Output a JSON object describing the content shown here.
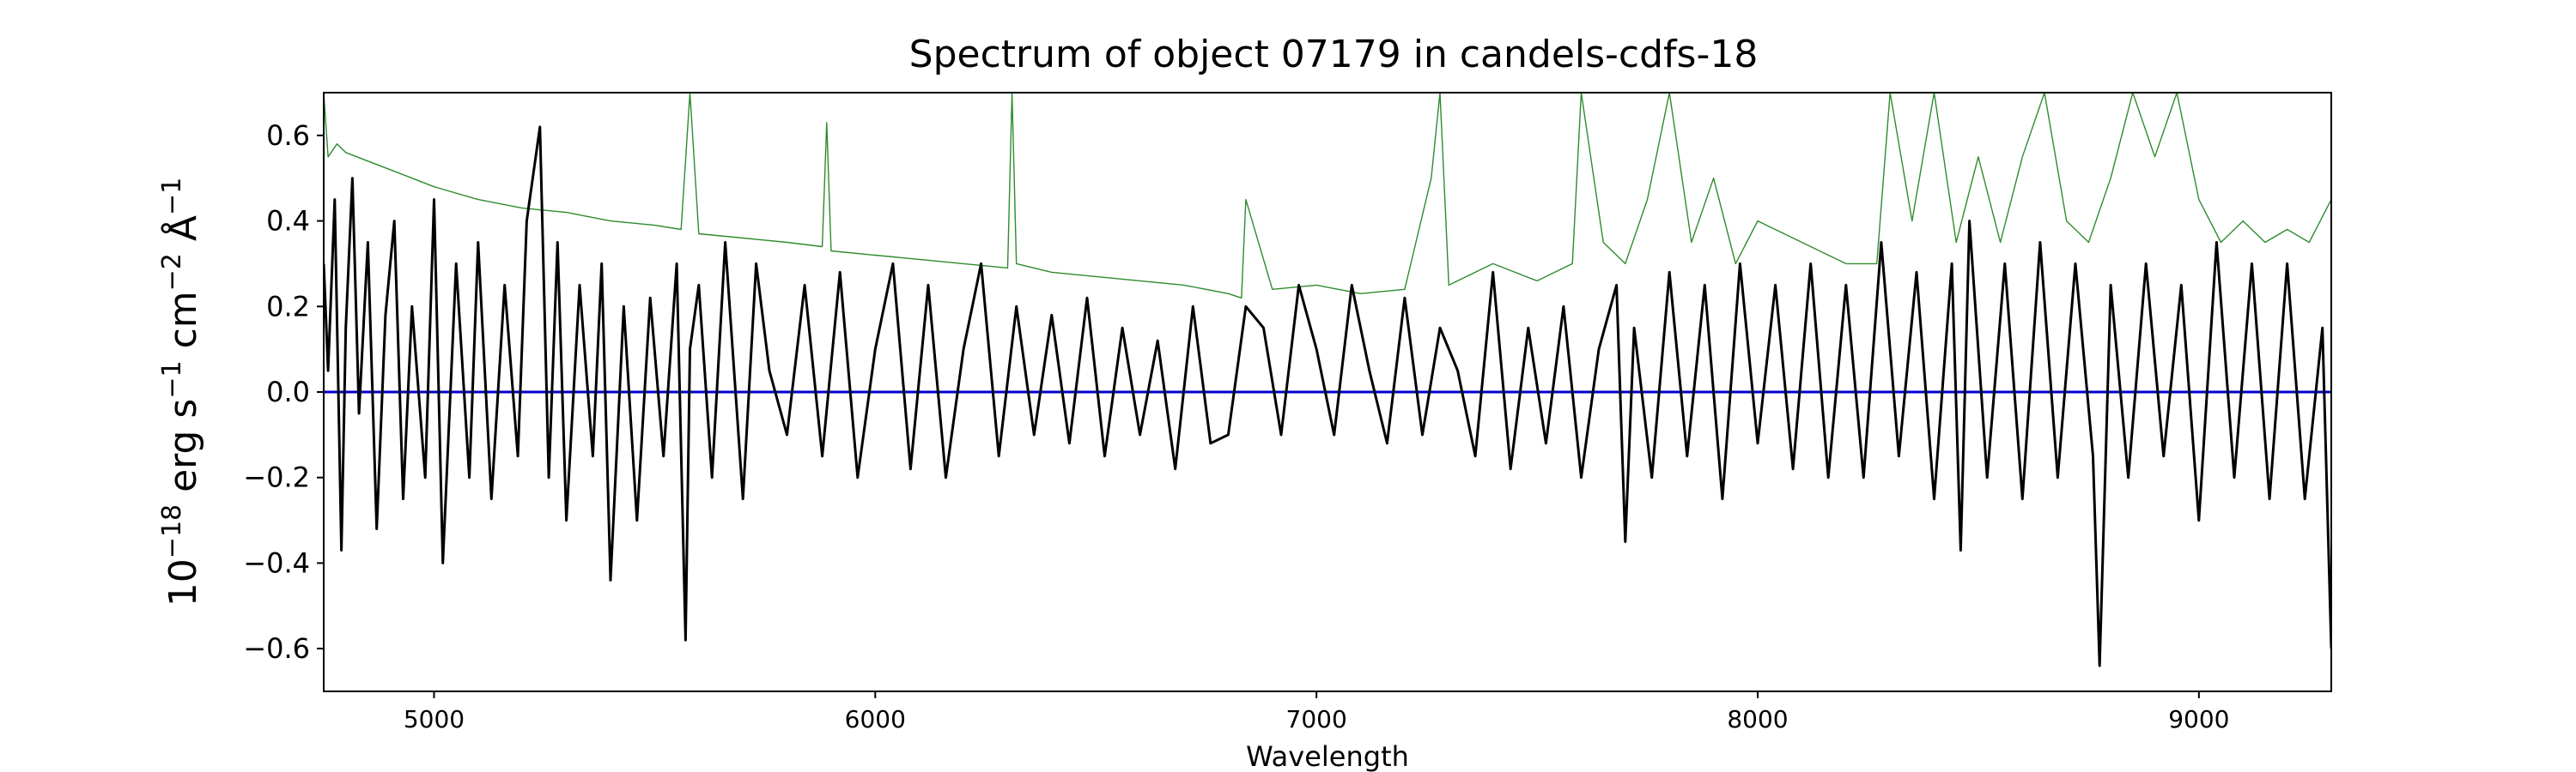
{
  "chart_data": {
    "type": "line",
    "title": "Spectrum of object 07179 in candels-cdfs-18",
    "xlabel": "Wavelength",
    "ylabel": "10^-18 erg s^-1 cm^-2 Å^-1",
    "ylabel_parts": {
      "base": "10",
      "exp1": "−18",
      "erg": " erg s",
      "exp2": "−1",
      "cm": " cm",
      "exp3": "−2",
      "ang": " Å",
      "exp4": "−1"
    },
    "xlim": [
      4750,
      9300
    ],
    "ylim": [
      -0.7,
      0.7
    ],
    "xticks": [
      5000,
      6000,
      7000,
      8000,
      9000
    ],
    "xtick_labels": [
      "5000",
      "6000",
      "7000",
      "8000",
      "9000"
    ],
    "yticks": [
      0.6,
      0.4,
      0.2,
      0.0,
      -0.2,
      -0.4,
      -0.6
    ],
    "ytick_labels": [
      "0.6",
      "0.4",
      "0.2",
      "0.0",
      "−0.2",
      "−0.4",
      "−0.6"
    ],
    "grid": false,
    "legend": "none",
    "colors": {
      "flux": "#000000",
      "error": "#2e8b2e",
      "zero_line": "#0000cc"
    },
    "series": [
      {
        "role": "flux",
        "color": "#000000",
        "x": [
          4750,
          4760,
          4775,
          4790,
          4800,
          4815,
          4830,
          4850,
          4870,
          4890,
          4910,
          4930,
          4950,
          4980,
          5000,
          5020,
          5050,
          5080,
          5100,
          5130,
          5160,
          5190,
          5210,
          5240,
          5260,
          5280,
          5300,
          5330,
          5360,
          5380,
          5400,
          5430,
          5460,
          5490,
          5520,
          5550,
          5570,
          5580,
          5600,
          5630,
          5660,
          5700,
          5730,
          5760,
          5800,
          5840,
          5880,
          5920,
          5960,
          6000,
          6040,
          6080,
          6120,
          6160,
          6200,
          6240,
          6280,
          6320,
          6360,
          6400,
          6440,
          6480,
          6520,
          6560,
          6600,
          6640,
          6680,
          6720,
          6760,
          6800,
          6840,
          6880,
          6920,
          6960,
          7000,
          7040,
          7080,
          7120,
          7160,
          7200,
          7240,
          7280,
          7320,
          7360,
          7400,
          7440,
          7480,
          7520,
          7560,
          7600,
          7640,
          7680,
          7700,
          7720,
          7760,
          7800,
          7840,
          7880,
          7920,
          7960,
          8000,
          8040,
          8080,
          8120,
          8160,
          8200,
          8240,
          8280,
          8320,
          8360,
          8400,
          8440,
          8460,
          8480,
          8520,
          8560,
          8600,
          8640,
          8680,
          8720,
          8760,
          8775,
          8800,
          8840,
          8880,
          8920,
          8960,
          9000,
          9040,
          9080,
          9120,
          9160,
          9200,
          9240,
          9280,
          9300
        ],
        "y": [
          0.3,
          0.05,
          0.45,
          -0.37,
          0.15,
          0.5,
          -0.05,
          0.35,
          -0.32,
          0.18,
          0.4,
          -0.25,
          0.2,
          -0.2,
          0.45,
          -0.4,
          0.3,
          -0.2,
          0.35,
          -0.25,
          0.25,
          -0.15,
          0.4,
          0.62,
          -0.2,
          0.35,
          -0.3,
          0.25,
          -0.15,
          0.3,
          -0.44,
          0.2,
          -0.3,
          0.22,
          -0.15,
          0.3,
          -0.58,
          0.1,
          0.25,
          -0.2,
          0.35,
          -0.25,
          0.3,
          0.05,
          -0.1,
          0.25,
          -0.15,
          0.28,
          -0.2,
          0.1,
          0.3,
          -0.18,
          0.25,
          -0.2,
          0.1,
          0.3,
          -0.15,
          0.2,
          -0.1,
          0.18,
          -0.12,
          0.22,
          -0.15,
          0.15,
          -0.1,
          0.12,
          -0.18,
          0.2,
          -0.12,
          -0.1,
          0.2,
          0.15,
          -0.1,
          0.25,
          0.1,
          -0.1,
          0.25,
          0.05,
          -0.12,
          0.22,
          -0.1,
          0.15,
          0.05,
          -0.15,
          0.28,
          -0.18,
          0.15,
          -0.12,
          0.2,
          -0.2,
          0.1,
          0.25,
          -0.35,
          0.15,
          -0.2,
          0.28,
          -0.15,
          0.25,
          -0.25,
          0.3,
          -0.12,
          0.25,
          -0.18,
          0.3,
          -0.2,
          0.25,
          -0.2,
          0.35,
          -0.15,
          0.28,
          -0.25,
          0.3,
          -0.37,
          0.4,
          -0.2,
          0.3,
          -0.25,
          0.35,
          -0.2,
          0.3,
          -0.15,
          -0.64,
          0.25,
          -0.2,
          0.3,
          -0.15,
          0.25,
          -0.3,
          0.35,
          -0.2,
          0.3,
          -0.25,
          0.3,
          -0.25,
          0.15,
          -0.6
        ]
      },
      {
        "role": "error",
        "color": "#2e8b2e",
        "x": [
          4750,
          4760,
          4780,
          4800,
          4850,
          4900,
          5000,
          5100,
          5200,
          5300,
          5400,
          5500,
          5560,
          5580,
          5600,
          5700,
          5800,
          5880,
          5890,
          5900,
          6000,
          6100,
          6200,
          6300,
          6310,
          6320,
          6400,
          6500,
          6600,
          6700,
          6800,
          6830,
          6840,
          6900,
          7000,
          7100,
          7200,
          7260,
          7280,
          7300,
          7400,
          7500,
          7580,
          7600,
          7650,
          7700,
          7750,
          7800,
          7850,
          7900,
          7950,
          8000,
          8100,
          8200,
          8270,
          8300,
          8350,
          8400,
          8450,
          8500,
          8550,
          8600,
          8650,
          8700,
          8750,
          8800,
          8850,
          8900,
          8950,
          9000,
          9050,
          9100,
          9150,
          9200,
          9250,
          9300
        ],
        "y": [
          0.7,
          0.55,
          0.58,
          0.56,
          0.54,
          0.52,
          0.48,
          0.45,
          0.43,
          0.42,
          0.4,
          0.39,
          0.38,
          0.7,
          0.37,
          0.36,
          0.35,
          0.34,
          0.63,
          0.33,
          0.32,
          0.31,
          0.3,
          0.29,
          0.7,
          0.3,
          0.28,
          0.27,
          0.26,
          0.25,
          0.23,
          0.22,
          0.45,
          0.24,
          0.25,
          0.23,
          0.24,
          0.5,
          0.7,
          0.25,
          0.3,
          0.26,
          0.3,
          0.7,
          0.35,
          0.3,
          0.45,
          0.7,
          0.35,
          0.5,
          0.3,
          0.4,
          0.35,
          0.3,
          0.3,
          0.7,
          0.4,
          0.7,
          0.35,
          0.55,
          0.35,
          0.55,
          0.7,
          0.4,
          0.35,
          0.5,
          0.7,
          0.55,
          0.7,
          0.45,
          0.35,
          0.4,
          0.35,
          0.38,
          0.35,
          0.45
        ]
      },
      {
        "role": "zero",
        "color": "#0000cc",
        "x": [
          4750,
          9300
        ],
        "y": [
          0.0,
          0.0
        ]
      }
    ]
  }
}
